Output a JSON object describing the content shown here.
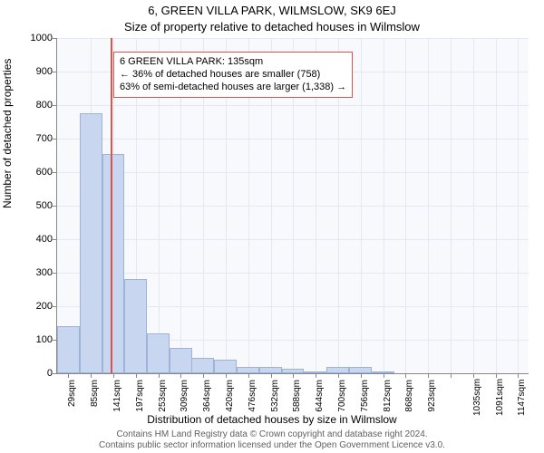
{
  "title": "6, GREEN VILLA PARK, WILMSLOW, SK9 6EJ",
  "subtitle": "Size of property relative to detached houses in Wilmslow",
  "y_axis_label": "Number of detached properties",
  "x_axis_label": "Distribution of detached houses by size in Wilmslow",
  "footer_line1": "Contains HM Land Registry data © Crown copyright and database right 2024.",
  "footer_line2": "Contains public sector information licensed under the Open Government Licence v3.0.",
  "chart": {
    "type": "histogram",
    "background_color": "#f7f9fd",
    "grid_color": "#e4e8f0",
    "axis_color": "#888888",
    "bar_fill": "#c9d6ef",
    "bar_border": "#9fb3d9",
    "marker_color": "#d9534f",
    "ylim": [
      0,
      1000
    ],
    "ytick_step": 100,
    "y_ticks": [
      0,
      100,
      200,
      300,
      400,
      500,
      600,
      700,
      800,
      900,
      1000
    ],
    "x_tick_labels": [
      "29sqm",
      "85sqm",
      "141sqm",
      "197sqm",
      "253sqm",
      "309sqm",
      "364sqm",
      "420sqm",
      "476sqm",
      "532sqm",
      "588sqm",
      "644sqm",
      "700sqm",
      "756sqm",
      "812sqm",
      "868sqm",
      "923sqm",
      "",
      "1035sqm",
      "1091sqm",
      "1147sqm"
    ],
    "x_min": 1,
    "x_max": 1175,
    "bin_width": 56,
    "bars": [
      {
        "x": 29,
        "count": 140
      },
      {
        "x": 85,
        "count": 775
      },
      {
        "x": 141,
        "count": 655
      },
      {
        "x": 197,
        "count": 280
      },
      {
        "x": 253,
        "count": 120
      },
      {
        "x": 309,
        "count": 75
      },
      {
        "x": 364,
        "count": 45
      },
      {
        "x": 420,
        "count": 40
      },
      {
        "x": 476,
        "count": 18
      },
      {
        "x": 532,
        "count": 20
      },
      {
        "x": 588,
        "count": 14
      },
      {
        "x": 644,
        "count": 6
      },
      {
        "x": 700,
        "count": 18
      },
      {
        "x": 756,
        "count": 18
      },
      {
        "x": 812,
        "count": 3
      },
      {
        "x": 868,
        "count": 0
      },
      {
        "x": 923,
        "count": 0
      },
      {
        "x": 979,
        "count": 0
      },
      {
        "x": 1035,
        "count": 0
      },
      {
        "x": 1091,
        "count": 0
      },
      {
        "x": 1147,
        "count": 0
      }
    ],
    "marker_x": 135,
    "annotation": {
      "line1": "6 GREEN VILLA PARK: 135sqm",
      "line2": "← 36% of detached houses are smaller (758)",
      "line3": "63% of semi-detached houses are larger (1,338) →",
      "top_y_value": 960,
      "left_x_value": 141
    }
  }
}
